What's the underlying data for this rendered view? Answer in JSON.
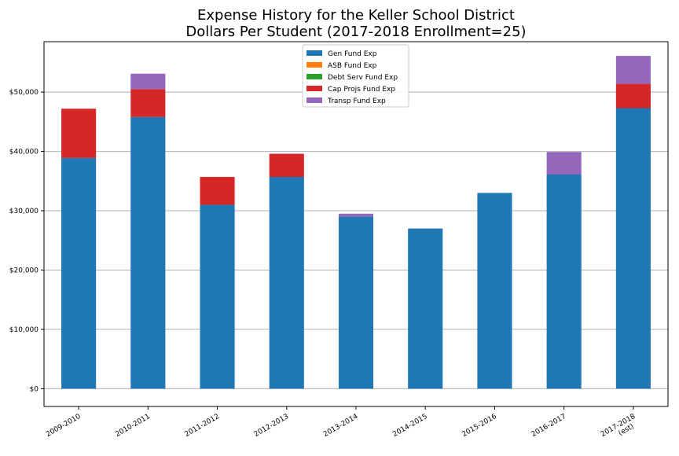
{
  "chart_data": {
    "type": "bar",
    "stacked": true,
    "title": "Expense History for the Keller School District",
    "subtitle": "Dollars Per Student (2017-2018 Enrollment=25)",
    "xlabel": "",
    "ylabel": "",
    "ylim": [
      -3000,
      58500
    ],
    "yticks": [
      0,
      10000,
      20000,
      30000,
      40000,
      50000
    ],
    "ytick_labels": [
      "$0",
      "$10,000",
      "$20,000",
      "$30,000",
      "$40,000",
      "$50,000"
    ],
    "grid": "horizontal",
    "legend_position": "upper center",
    "categories": [
      [
        "2009-2010"
      ],
      [
        "2010-2011"
      ],
      [
        "2011-2012"
      ],
      [
        "2012-2013"
      ],
      [
        "2013-2014"
      ],
      [
        "2014-2015"
      ],
      [
        "2015-2016"
      ],
      [
        "2016-2017"
      ],
      [
        "2017-2018",
        "(est)"
      ]
    ],
    "series": [
      {
        "name": "Gen Fund Exp",
        "color": "#1f77b4",
        "values": [
          38900,
          45800,
          31000,
          35700,
          29000,
          27000,
          33000,
          36100,
          47300
        ]
      },
      {
        "name": "ASB Fund Exp",
        "color": "#ff7f0e",
        "values": [
          0,
          0,
          0,
          0,
          0,
          0,
          0,
          0,
          0
        ]
      },
      {
        "name": "Debt Serv Fund Exp",
        "color": "#2ca02c",
        "values": [
          0,
          0,
          0,
          0,
          0,
          0,
          0,
          0,
          0
        ]
      },
      {
        "name": "Cap Projs Fund Exp",
        "color": "#d62728",
        "values": [
          8300,
          4700,
          4700,
          3900,
          0,
          0,
          0,
          0,
          4100
        ]
      },
      {
        "name": "Transp Fund Exp",
        "color": "#9467bd",
        "values": [
          0,
          2600,
          0,
          0,
          500,
          0,
          0,
          3800,
          4700
        ]
      }
    ]
  }
}
